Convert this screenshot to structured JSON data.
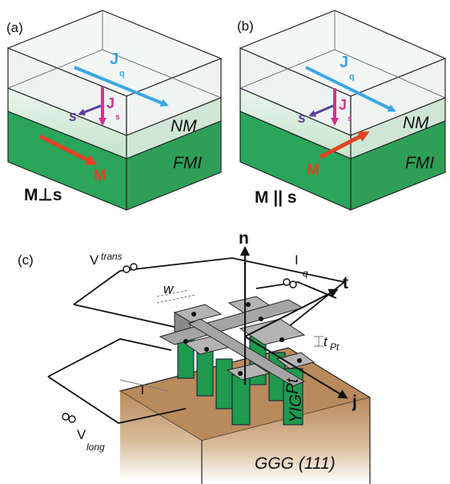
{
  "panels": {
    "a": {
      "label": "(a)",
      "jq": "J",
      "jq_sub": "q",
      "js": "J",
      "js_sub": "s",
      "s": "s",
      "nm": "NM",
      "fmi": "FMI",
      "m": "M",
      "caption": "M⊥s"
    },
    "b": {
      "label": "(b)",
      "jq": "J",
      "jq_sub": "q",
      "js": "J",
      "js_sub": "s",
      "s": "s",
      "nm": "NM",
      "fmi": "FMI",
      "m": "M",
      "caption": "M || s"
    },
    "c": {
      "label": "(c)",
      "v_trans": "V",
      "v_trans_sub": "trans",
      "iq": "I",
      "iq_sub": "q",
      "w": "w",
      "t_pt": "t",
      "t_pt_sub": "Pt",
      "l": "l",
      "v_long": "V",
      "v_long_sub": "long",
      "n": "n",
      "t": "t",
      "j": "j",
      "pt": "Pt",
      "yig": "YIG",
      "substrate": "GGG (111)"
    }
  },
  "colors": {
    "nm_layer": "#d3e9d7",
    "fmi_layer": "#2aa55b",
    "vector_jq": "#3aa6e6",
    "vector_js": "#d8308d",
    "vector_s": "#5b3f99",
    "vector_m": "#e04424",
    "pt_layer": "#9a9a9a",
    "yig_layer": "#1f9a4e",
    "substrate": "#b98a5c"
  },
  "icons": {
    "current_source": "double-circle-icon",
    "voltmeter": "double-circle-icon"
  }
}
